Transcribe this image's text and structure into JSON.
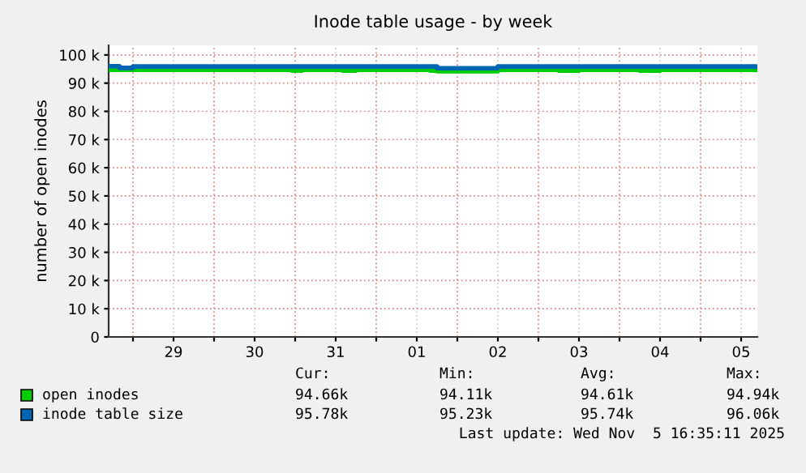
{
  "chart_data": {
    "type": "line",
    "title": "Inode table usage - by week",
    "ylabel": "number of open inodes",
    "x": [
      "2025-10-28T17:00",
      "2025-10-28T20:00",
      "2025-10-29T00:00",
      "2025-10-29T12:00",
      "2025-10-30T00:00",
      "2025-10-30T12:00",
      "2025-10-30T23:00",
      "2025-10-31T02:00",
      "2025-10-31T14:00",
      "2025-10-31T18:00",
      "2025-11-01T06:00",
      "2025-11-01T16:00",
      "2025-11-01T18:00",
      "2025-11-02T00:00",
      "2025-11-02T10:00",
      "2025-11-02T12:00",
      "2025-11-03T00:00",
      "2025-11-03T06:00",
      "2025-11-03T12:00",
      "2025-11-04T00:00",
      "2025-11-04T06:00",
      "2025-11-04T12:00",
      "2025-11-05T00:00",
      "2025-11-05T16:30"
    ],
    "series": [
      {
        "name": "open inodes",
        "color": "#00cc00",
        "values": [
          94700,
          94700,
          94700,
          94700,
          94700,
          94700,
          94400,
          94700,
          94400,
          94700,
          94700,
          94400,
          94200,
          94200,
          94200,
          94700,
          94700,
          94400,
          94700,
          94700,
          94400,
          94700,
          94700,
          94660
        ]
      },
      {
        "name": "inode table size",
        "color": "#0066b3",
        "values": [
          96000,
          95400,
          95900,
          95900,
          95900,
          95900,
          95900,
          95900,
          95900,
          95900,
          95900,
          95900,
          95300,
          95300,
          95300,
          95900,
          95900,
          95900,
          95900,
          95900,
          95900,
          95900,
          95900,
          95780
        ]
      }
    ],
    "xlim": [
      "2025-10-28T16:48",
      "2025-11-05T16:48"
    ],
    "xticks": [
      {
        "value": "2025-10-29T00:00",
        "label": null
      },
      {
        "value": "2025-10-29T12:00",
        "label": "29"
      },
      {
        "value": "2025-10-30T00:00",
        "label": null
      },
      {
        "value": "2025-10-30T12:00",
        "label": "30"
      },
      {
        "value": "2025-10-31T00:00",
        "label": null
      },
      {
        "value": "2025-10-31T12:00",
        "label": "31"
      },
      {
        "value": "2025-11-01T00:00",
        "label": null
      },
      {
        "value": "2025-11-01T12:00",
        "label": "01"
      },
      {
        "value": "2025-11-02T00:00",
        "label": null
      },
      {
        "value": "2025-11-02T12:00",
        "label": "02"
      },
      {
        "value": "2025-11-03T00:00",
        "label": null
      },
      {
        "value": "2025-11-03T12:00",
        "label": "03"
      },
      {
        "value": "2025-11-04T00:00",
        "label": null
      },
      {
        "value": "2025-11-04T12:00",
        "label": "04"
      },
      {
        "value": "2025-11-05T00:00",
        "label": null
      },
      {
        "value": "2025-11-05T12:00",
        "label": "05"
      }
    ],
    "ylim": [
      0,
      103400
    ],
    "yticks": [
      {
        "value": 0,
        "label": "0"
      },
      {
        "value": 10000,
        "label": "10 k"
      },
      {
        "value": 20000,
        "label": "20 k"
      },
      {
        "value": 30000,
        "label": "30 k"
      },
      {
        "value": 40000,
        "label": "40 k"
      },
      {
        "value": 50000,
        "label": "50 k"
      },
      {
        "value": 60000,
        "label": "60 k"
      },
      {
        "value": 70000,
        "label": "70 k"
      },
      {
        "value": 80000,
        "label": "80 k"
      },
      {
        "value": 90000,
        "label": "90 k"
      },
      {
        "value": 100000,
        "label": "100 k"
      }
    ],
    "grid": true,
    "legend": "bottom left",
    "line_style": "solid",
    "marker": "none",
    "annotations": [
      "Cur:",
      "Min:",
      "Avg:",
      "Max:",
      "94.66k",
      "94.11k",
      "94.61k",
      "94.94k",
      "95.78k",
      "95.23k",
      "95.74k",
      "96.06k",
      "Last update: Wed Nov  5 16:35:11 2025"
    ]
  }
}
